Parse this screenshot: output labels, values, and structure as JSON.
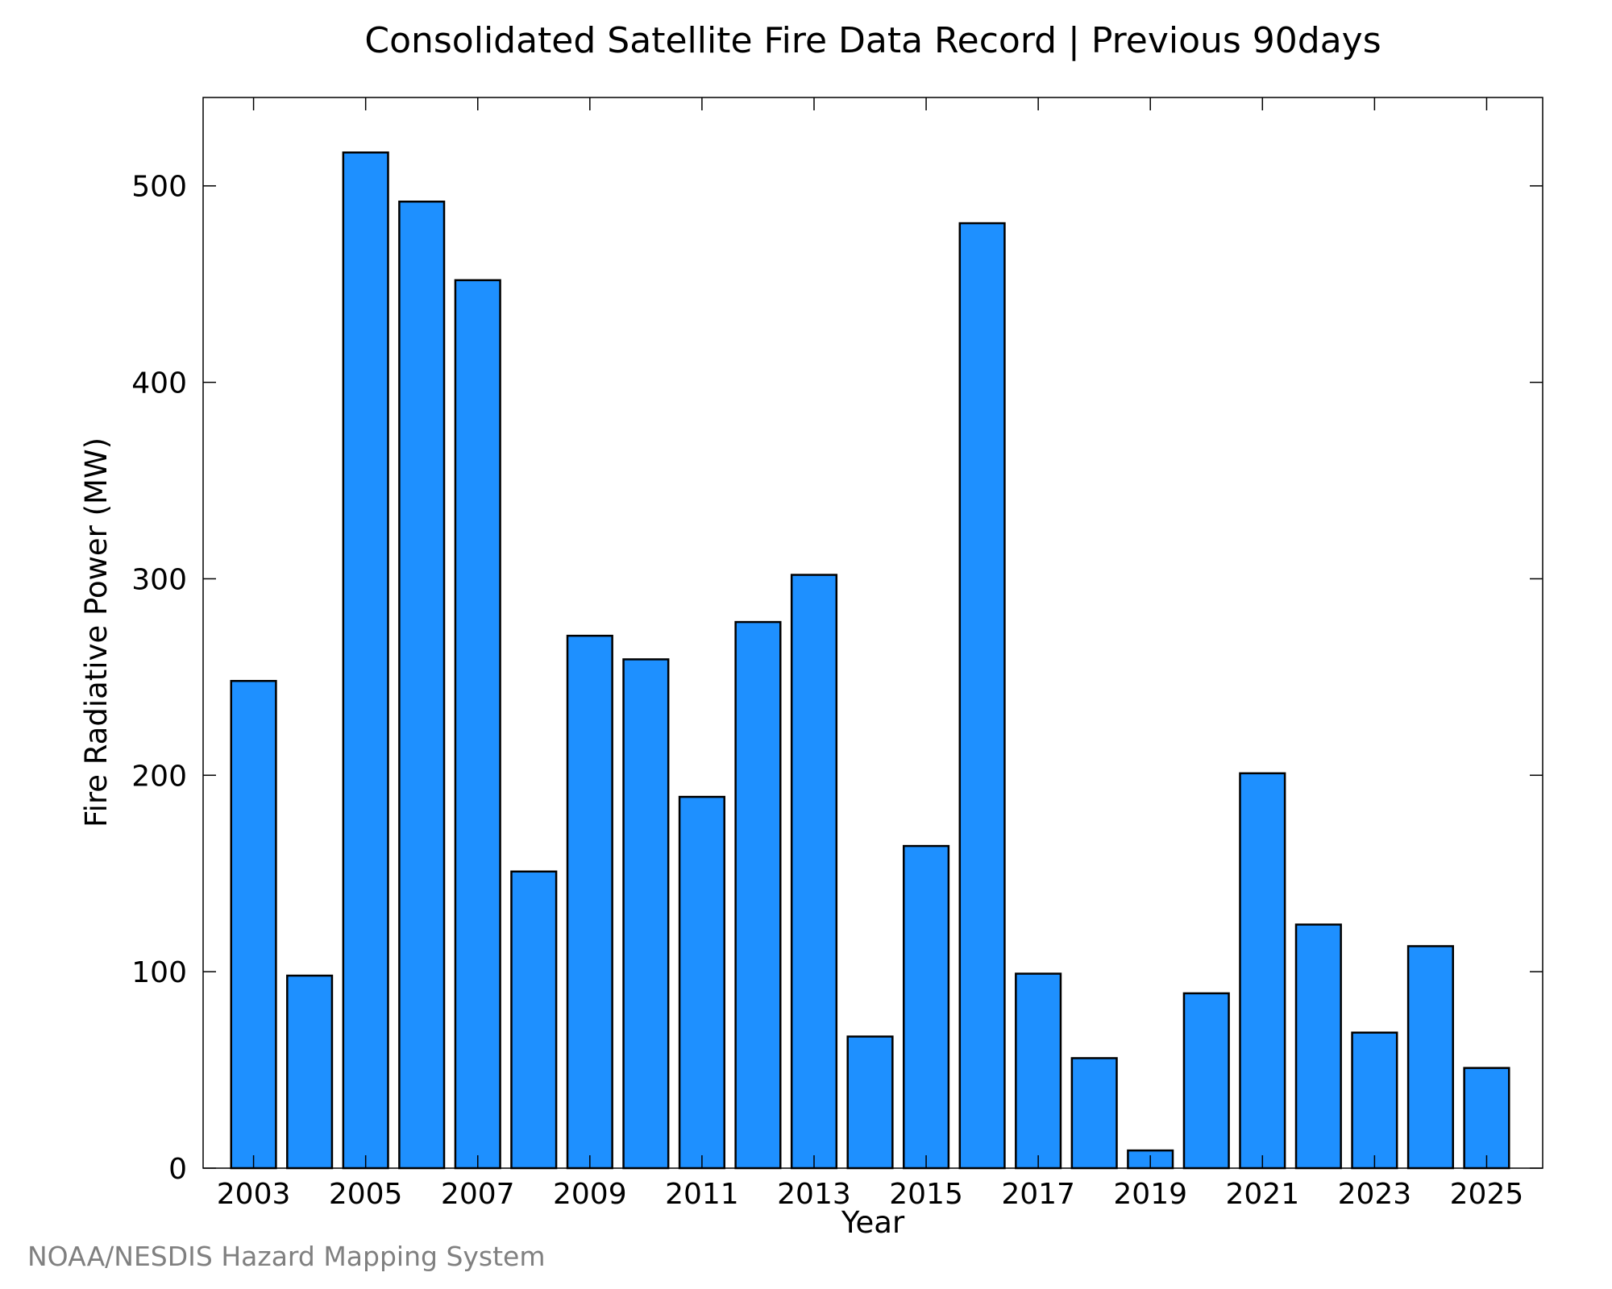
{
  "credit": "NOAA/NESDIS Hazard Mapping System",
  "colors": {
    "bar_fill": "#1E90FF",
    "bar_stroke": "#000000",
    "credit_text": "#808080"
  },
  "chart_data": {
    "type": "bar",
    "title": "Consolidated Satellite Fire Data Record | Previous 90days",
    "xlabel": "Year",
    "ylabel": "Fire Radiative Power (MW)",
    "ylim": [
      0,
      545
    ],
    "xlim": [
      2002.1,
      2026.0
    ],
    "yticks": [
      0,
      100,
      200,
      300,
      400,
      500
    ],
    "xticks": [
      2003,
      2005,
      2007,
      2009,
      2011,
      2013,
      2015,
      2017,
      2019,
      2021,
      2023,
      2025
    ],
    "grid": false,
    "categories": [
      2003,
      2004,
      2005,
      2006,
      2007,
      2008,
      2009,
      2010,
      2011,
      2012,
      2013,
      2014,
      2015,
      2016,
      2017,
      2018,
      2019,
      2020,
      2021,
      2022,
      2023,
      2024,
      2025
    ],
    "values": [
      248,
      98,
      517,
      492,
      452,
      151,
      271,
      259,
      189,
      278,
      302,
      67,
      164,
      481,
      99,
      56,
      9,
      89,
      201,
      124,
      69,
      113,
      51
    ]
  }
}
